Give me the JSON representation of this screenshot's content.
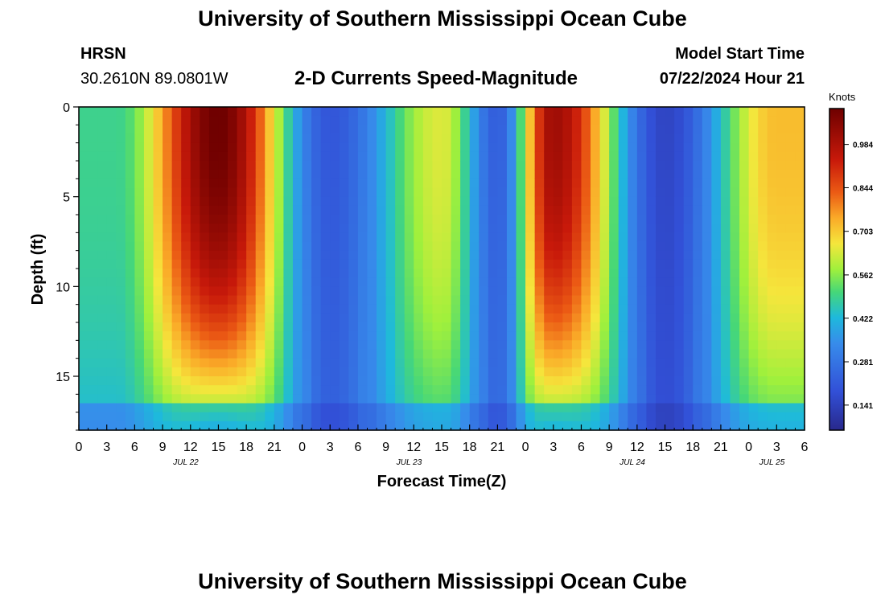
{
  "page": {
    "title": "University of Southern Mississippi Ocean Cube",
    "footer_title": "University of Southern Mississippi Ocean Cube"
  },
  "station": {
    "name": "HRSN",
    "coords": "30.2610N  89.0801W"
  },
  "model": {
    "start_label": "Model Start Time",
    "start_value": "07/22/2024 Hour 21"
  },
  "chart_data": {
    "type": "heatmap",
    "title": "2-D Currents Speed-Magnitude",
    "xlabel": "Forecast Time(Z)",
    "ylabel": "Depth (ft)",
    "x_tick_labels": [
      "0",
      "3",
      "6",
      "9",
      "12",
      "15",
      "18",
      "21",
      "0",
      "3",
      "6",
      "9",
      "12",
      "15",
      "18",
      "21",
      "0",
      "3",
      "6",
      "9",
      "12",
      "15",
      "18",
      "21",
      "0",
      "3",
      "6"
    ],
    "x_range_hours": [
      0,
      78
    ],
    "date_labels": [
      {
        "label": "JUL 22",
        "hour": 11.5
      },
      {
        "label": "JUL 23",
        "hour": 35.5
      },
      {
        "label": "JUL 24",
        "hour": 59.5
      },
      {
        "label": "JUL 25",
        "hour": 74.5
      }
    ],
    "y_ticks": [
      0,
      5,
      10,
      15
    ],
    "y_range_ft": [
      0,
      18
    ],
    "colorbar": {
      "unit": "Knots",
      "ticks": [
        "0.984",
        "0.844",
        "0.703",
        "0.562",
        "0.422",
        "0.281",
        "0.141"
      ],
      "range": [
        0.06,
        1.1
      ]
    },
    "speed_peaks": [
      {
        "hour": 4,
        "depth_ft": 0,
        "speed": 0.49
      },
      {
        "hour": 15,
        "depth_ft": 3,
        "speed": 1.1
      },
      {
        "hour": 27,
        "depth_ft": 6,
        "speed": 0.2
      },
      {
        "hour": 39,
        "depth_ft": 1,
        "speed": 0.64
      },
      {
        "hour": 45,
        "depth_ft": 0,
        "speed": 0.22
      },
      {
        "hour": 51,
        "depth_ft": 3,
        "speed": 1.01
      },
      {
        "hour": 63,
        "depth_ft": 10,
        "speed": 0.15
      },
      {
        "hour": 75,
        "depth_ft": 1,
        "speed": 0.72
      }
    ]
  }
}
